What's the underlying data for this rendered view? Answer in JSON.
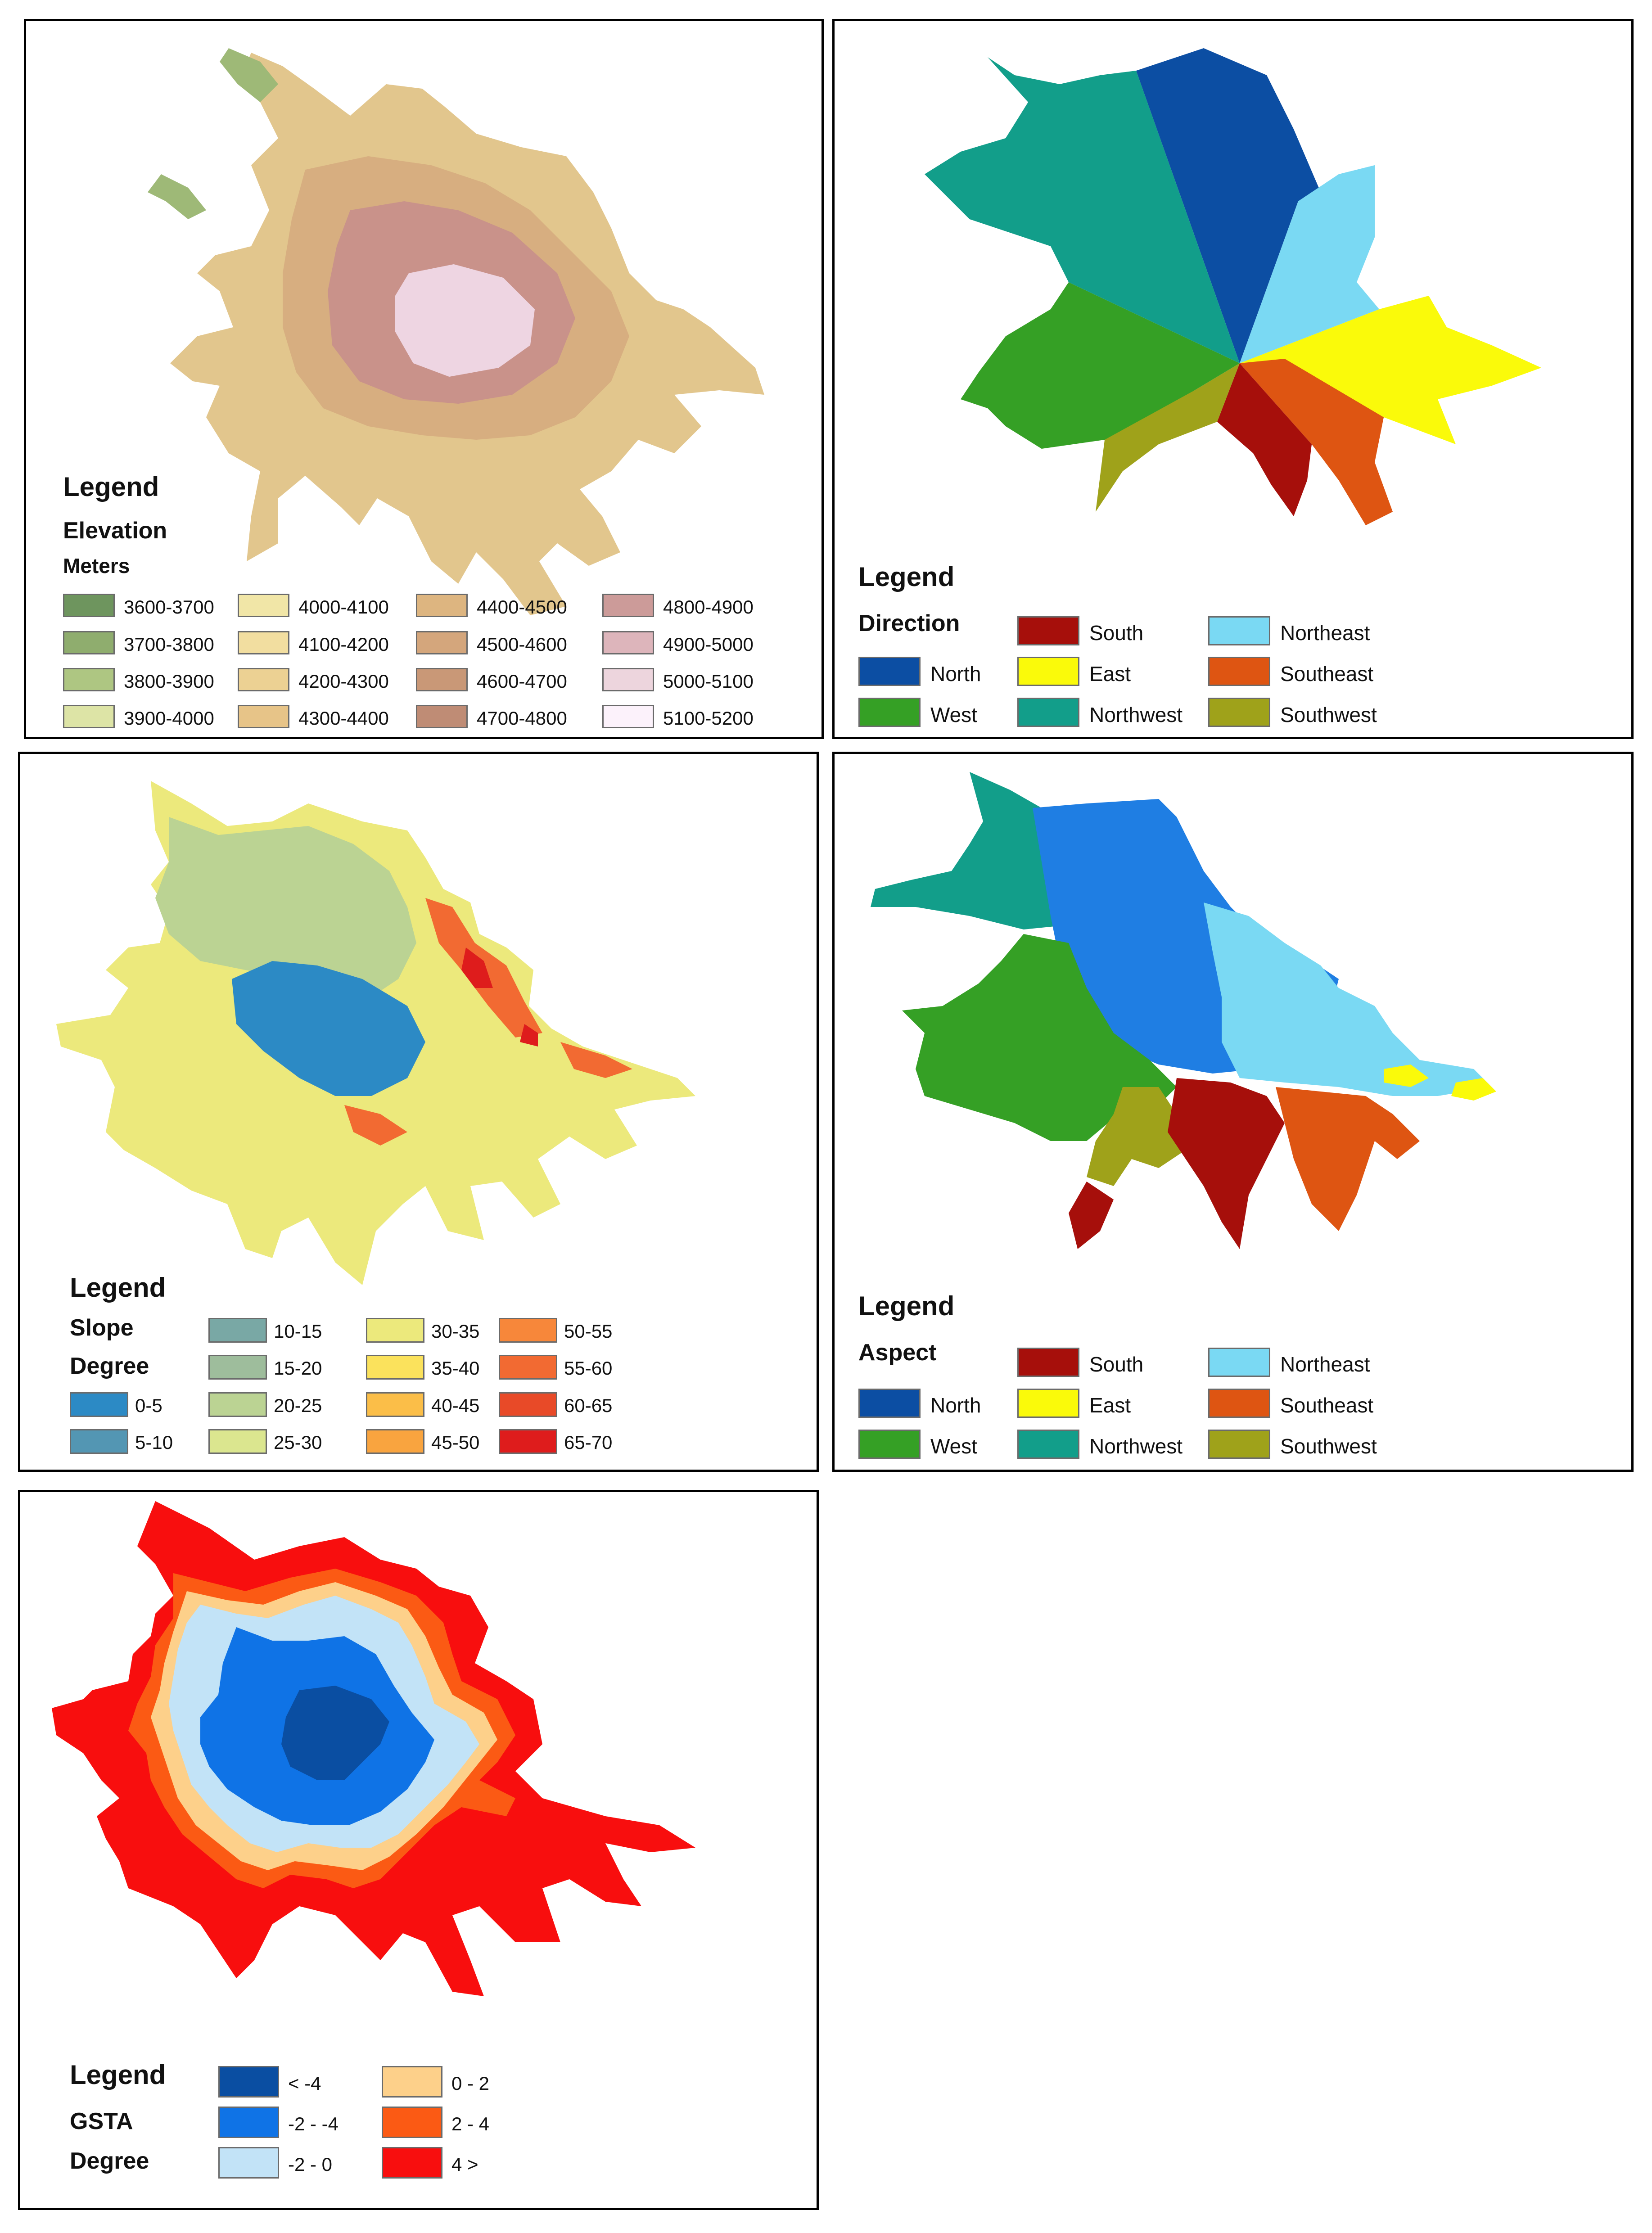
{
  "panels": [
    {
      "id": "elevation",
      "legend_title": "Legend",
      "layer_title": "Elevation",
      "unit": "Meters",
      "classes": [
        {
          "label": "3600-3700",
          "color": "#6e955e"
        },
        {
          "label": "3700-3800",
          "color": "#8fad6e"
        },
        {
          "label": "3800-3900",
          "color": "#aec682"
        },
        {
          "label": "3900-4000",
          "color": "#dde4a6"
        },
        {
          "label": "4000-4100",
          "color": "#f1e6a7"
        },
        {
          "label": "4100-4200",
          "color": "#f2dea0"
        },
        {
          "label": "4200-4300",
          "color": "#ecd193"
        },
        {
          "label": "4300-4400",
          "color": "#e7c488"
        },
        {
          "label": "4400-4500",
          "color": "#ddb580"
        },
        {
          "label": "4500-4600",
          "color": "#d4a67c"
        },
        {
          "label": "4600-4700",
          "color": "#c99877"
        },
        {
          "label": "4700-4800",
          "color": "#bf8c75"
        },
        {
          "label": "4800-4900",
          "color": "#cc9b99"
        },
        {
          "label": "4900-5000",
          "color": "#ddb5bb"
        },
        {
          "label": "5000-5100",
          "color": "#edd5dd"
        },
        {
          "label": "5100-5200",
          "color": "#fcf2fb"
        }
      ]
    },
    {
      "id": "direction",
      "legend_title": "Legend",
      "layer_title": "Direction",
      "classes": [
        {
          "label": "North",
          "color": "#0c4ea3"
        },
        {
          "label": "West",
          "color": "#35a025"
        },
        {
          "label": "South",
          "color": "#a60f0b"
        },
        {
          "label": "East",
          "color": "#fafa0a"
        },
        {
          "label": "Northwest",
          "color": "#129e8a"
        },
        {
          "label": "Northeast",
          "color": "#7ad9f3"
        },
        {
          "label": "Southeast",
          "color": "#de5512"
        },
        {
          "label": "Southwest",
          "color": "#9fa21a"
        }
      ]
    },
    {
      "id": "slope",
      "legend_title": "Legend",
      "layer_title": "Slope",
      "unit": "Degree",
      "classes": [
        {
          "label": "0-5",
          "color": "#2c8ac5"
        },
        {
          "label": "5-10",
          "color": "#5396b3"
        },
        {
          "label": "10-15",
          "color": "#79a8a5"
        },
        {
          "label": "15-20",
          "color": "#9ebd9c"
        },
        {
          "label": "20-25",
          "color": "#bbd393"
        },
        {
          "label": "25-30",
          "color": "#dbe68f"
        },
        {
          "label": "30-35",
          "color": "#ece97c"
        },
        {
          "label": "35-40",
          "color": "#fbe25c"
        },
        {
          "label": "40-45",
          "color": "#fbbe48"
        },
        {
          "label": "45-50",
          "color": "#f9a43f"
        },
        {
          "label": "50-55",
          "color": "#f7873a"
        },
        {
          "label": "55-60",
          "color": "#f26a32"
        },
        {
          "label": "60-65",
          "color": "#e84a28"
        },
        {
          "label": "65-70",
          "color": "#de1c1c"
        }
      ]
    },
    {
      "id": "aspect",
      "legend_title": "Legend",
      "layer_title": "Aspect",
      "classes": [
        {
          "label": "North",
          "color": "#0c4ea3"
        },
        {
          "label": "West",
          "color": "#35a025"
        },
        {
          "label": "South",
          "color": "#a60f0b"
        },
        {
          "label": "East",
          "color": "#fafa0a"
        },
        {
          "label": "Northwest",
          "color": "#129e8a"
        },
        {
          "label": "Northeast",
          "color": "#7ad9f3"
        },
        {
          "label": "Southeast",
          "color": "#de5512"
        },
        {
          "label": "Southwest",
          "color": "#9fa21a"
        }
      ]
    },
    {
      "id": "gsta",
      "legend_title": "Legend",
      "layer_title": "GSTA",
      "unit": "Degree",
      "classes": [
        {
          "label": "< -4",
          "color": "#0a4ea2"
        },
        {
          "label": "-2 - -4",
          "color": "#0f73e6"
        },
        {
          "label": "-2 - 0",
          "color": "#c2e3f7"
        },
        {
          "label": "0 - 2",
          "color": "#fdd08a"
        },
        {
          "label": "2 - 4",
          "color": "#fb5a14"
        },
        {
          "label": "4 >",
          "color": "#f80e0e"
        }
      ]
    }
  ]
}
